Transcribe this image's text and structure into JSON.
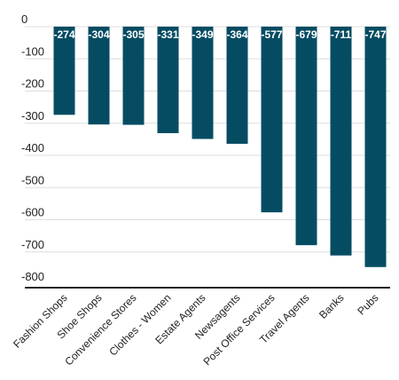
{
  "chart_data": {
    "type": "bar",
    "title": "",
    "xlabel": "",
    "ylabel": "",
    "categories": [
      "Fashion Shops",
      "Shoe Shops",
      "Convenience Stores",
      "Clothes - Women",
      "Estate Agents",
      "Newsagents",
      "Post Office Services",
      "Travel Agents",
      "Banks",
      "Pubs"
    ],
    "values": [
      -274,
      -304,
      -305,
      -331,
      -349,
      -364,
      -577,
      -679,
      -711,
      -747
    ],
    "data_labels": [
      "-274",
      "-304",
      "-305",
      "-331",
      "-349",
      "-364",
      "-577",
      "-679",
      "-711",
      "-747"
    ],
    "ylim": [
      -800,
      0
    ],
    "y_ticks": [
      0,
      -100,
      -200,
      -300,
      -400,
      -500,
      -600,
      -700,
      -800
    ],
    "y_tick_labels": [
      "0",
      "-100",
      "-200",
      "-300",
      "-400",
      "-500",
      "-600",
      "-700",
      "-800"
    ],
    "grid": true,
    "legend": "none",
    "bar_color": "#054c63",
    "grid_color": "#dddddd",
    "axis_color": "#222222"
  }
}
